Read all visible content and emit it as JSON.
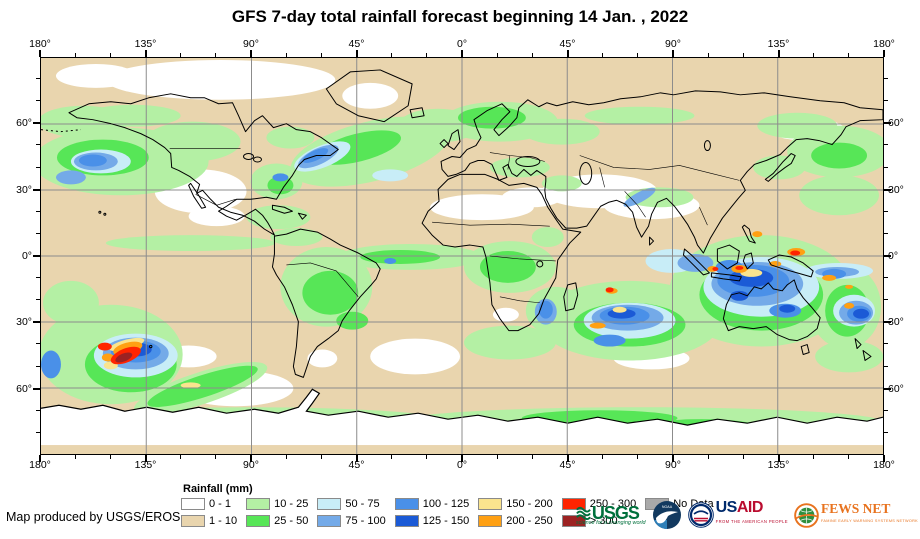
{
  "title": "GFS 7-day total rainfall forecast beginning 14 Jan. , 2022",
  "axes": {
    "lon_labels": [
      "180°",
      "135°",
      "90°",
      "45°",
      "0°",
      "45°",
      "90°",
      "135°",
      "180°"
    ],
    "lat_labels": [
      "60°",
      "30°",
      "0°",
      "30°",
      "60°"
    ]
  },
  "legend": {
    "title": "Rainfall (mm)",
    "columns": [
      [
        {
          "label": "0 - 1",
          "color": "#ffffff"
        },
        {
          "label": "1 - 10",
          "color": "#e9d5ae"
        }
      ],
      [
        {
          "label": "10 - 25",
          "color": "#b4f0a4"
        },
        {
          "label": "25 - 50",
          "color": "#57e657"
        }
      ],
      [
        {
          "label": "50 - 75",
          "color": "#c8edf7"
        },
        {
          "label": "75 - 100",
          "color": "#74aae8"
        }
      ],
      [
        {
          "label": "100 - 125",
          "color": "#4a90e8"
        },
        {
          "label": "125 - 150",
          "color": "#1b5ad6"
        }
      ],
      [
        {
          "label": "150 - 200",
          "color": "#fae48e"
        },
        {
          "label": "200 - 250",
          "color": "#ffa013"
        }
      ],
      [
        {
          "label": "250 - 300",
          "color": "#ff2400"
        },
        {
          "label": "> 300",
          "color": "#9c2222"
        }
      ],
      [
        {
          "label": "No Data",
          "color": "#a9a9a9"
        }
      ]
    ]
  },
  "credit": "Map produced by USGS/EROS",
  "logos": {
    "usgs": {
      "name": "USGS",
      "tagline": "science for a changing world",
      "color": "#00703c"
    },
    "noaa": {
      "name": "NOAA",
      "color": "#12395f"
    },
    "usaid": {
      "name_us": "US",
      "name_aid": "AID",
      "tagline": "FROM THE AMERICAN PEOPLE"
    },
    "fewsnet": {
      "name": "FEWS NET",
      "tagline": "FAMINE EARLY WARNING SYSTEMS NETWORK",
      "color": "#e8731f"
    }
  },
  "map": {
    "grid_color": "#8c8c8c",
    "background_color": "#e9d5ae",
    "projection": "equirectangular, 180W-180E / 90N-90S, gridlines every 45 deg lon and 30 deg lat"
  }
}
